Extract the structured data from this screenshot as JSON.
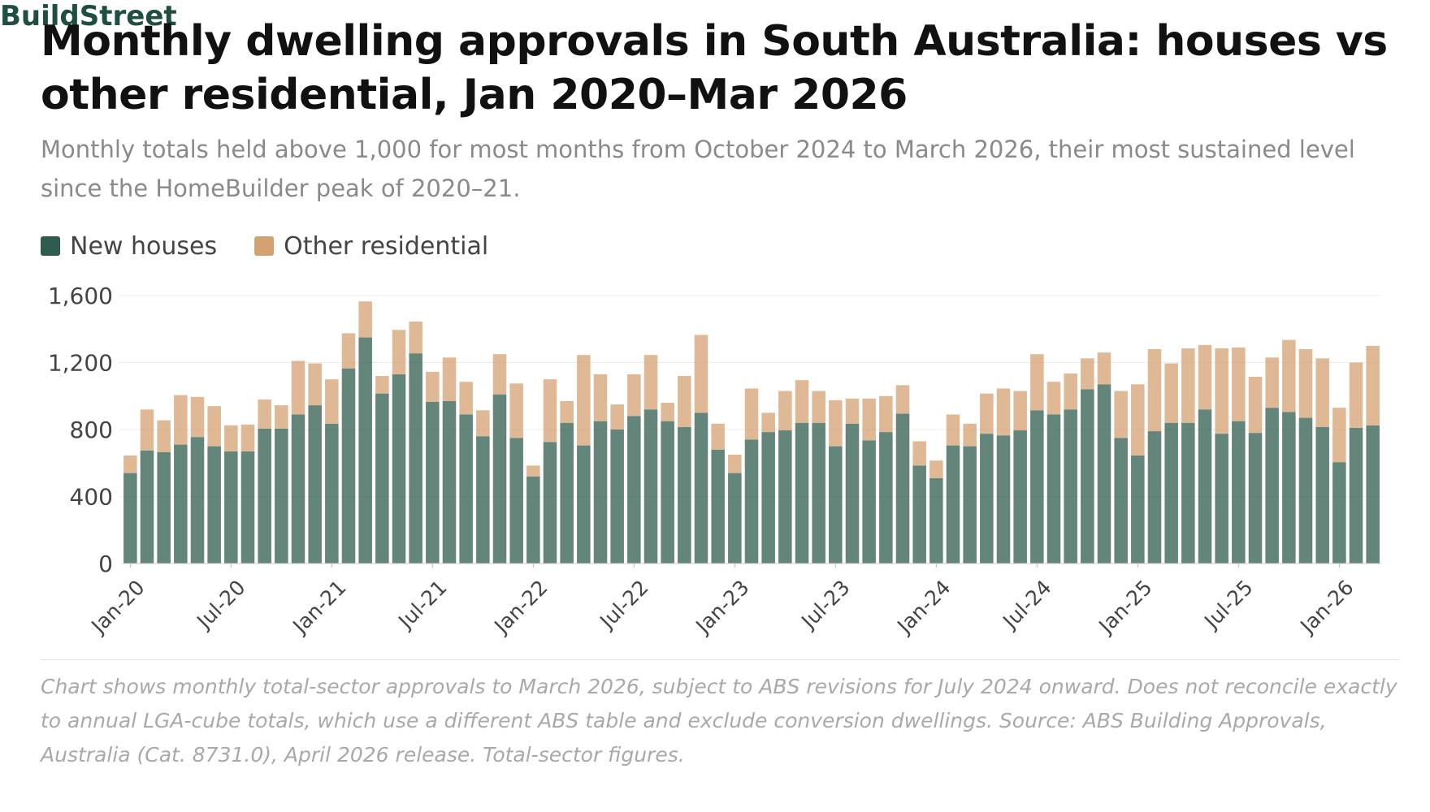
{
  "chart_data": {
    "type": "stacked_bar",
    "title": "Monthly dwelling approvals in South Australia: houses vs other residential, Jan 2020–Mar 2026",
    "subtitle": "Monthly totals held above 1,000 for most months from October 2024 to March 2026, their most sustained level since the HomeBuilder peak of 2020–21.",
    "note": "Chart shows monthly total-sector approvals to March 2026, subject to ABS revisions for July 2024 onward. Does not reconcile exactly to annual LGA-cube totals, which use a different ABS table and exclude conversion dwellings. Source: ABS Building Approvals, Australia (Cat. 8731.0), April 2026 release. Total-sector figures.",
    "brand": "BuildStreet",
    "categories": [
      "Jan-20",
      null,
      null,
      null,
      null,
      null,
      "Jul-20",
      null,
      null,
      null,
      null,
      null,
      "Jan-21",
      null,
      null,
      null,
      null,
      null,
      "Jul-21",
      null,
      null,
      null,
      null,
      null,
      "Jan-22",
      null,
      null,
      null,
      null,
      null,
      "Jul-22",
      null,
      null,
      null,
      null,
      null,
      "Jan-23",
      null,
      null,
      null,
      null,
      null,
      "Jul-23",
      null,
      null,
      null,
      null,
      null,
      "Jan-24",
      null,
      null,
      null,
      null,
      null,
      "Jul-24",
      null,
      null,
      null,
      null,
      null,
      "Jan-25",
      null,
      null,
      null,
      null,
      null,
      "Jul-25",
      null,
      null,
      null,
      null,
      null,
      "Jan-26",
      null,
      null
    ],
    "series": [
      {
        "name": "New houses",
        "color": "#2f5c4e",
        "values": [
          540,
          675,
          665,
          710,
          755,
          700,
          670,
          670,
          805,
          805,
          890,
          945,
          835,
          1165,
          1350,
          1015,
          1130,
          1255,
          965,
          970,
          890,
          760,
          1010,
          750,
          520,
          725,
          840,
          705,
          850,
          800,
          880,
          920,
          850,
          815,
          900,
          680,
          540,
          740,
          785,
          795,
          840,
          840,
          700,
          835,
          735,
          785,
          895,
          585,
          510,
          705,
          700,
          775,
          765,
          795,
          915,
          890,
          920,
          1040,
          1070,
          750,
          645,
          790,
          840,
          840,
          920,
          775,
          850,
          780,
          930,
          905,
          870,
          815,
          605,
          810,
          825
        ]
      },
      {
        "name": "Other residential",
        "color": "#d4a271",
        "values": [
          105,
          245,
          190,
          295,
          240,
          240,
          155,
          160,
          175,
          140,
          320,
          250,
          265,
          210,
          215,
          105,
          265,
          190,
          180,
          260,
          195,
          155,
          240,
          325,
          65,
          375,
          130,
          540,
          280,
          150,
          250,
          325,
          110,
          305,
          465,
          155,
          110,
          305,
          115,
          235,
          255,
          190,
          275,
          150,
          250,
          215,
          170,
          145,
          105,
          185,
          135,
          240,
          280,
          235,
          335,
          195,
          215,
          185,
          190,
          280,
          425,
          490,
          355,
          445,
          385,
          510,
          440,
          335,
          300,
          430,
          410,
          410,
          325,
          390,
          475
        ]
      }
    ],
    "ylim": [
      0,
      1600
    ],
    "yticks": [
      0,
      400,
      800,
      {
        "value": 1200,
        "label": "1,200"
      },
      {
        "value": 1600,
        "label": "1,600"
      }
    ],
    "grid": true,
    "legend": "top-left"
  }
}
